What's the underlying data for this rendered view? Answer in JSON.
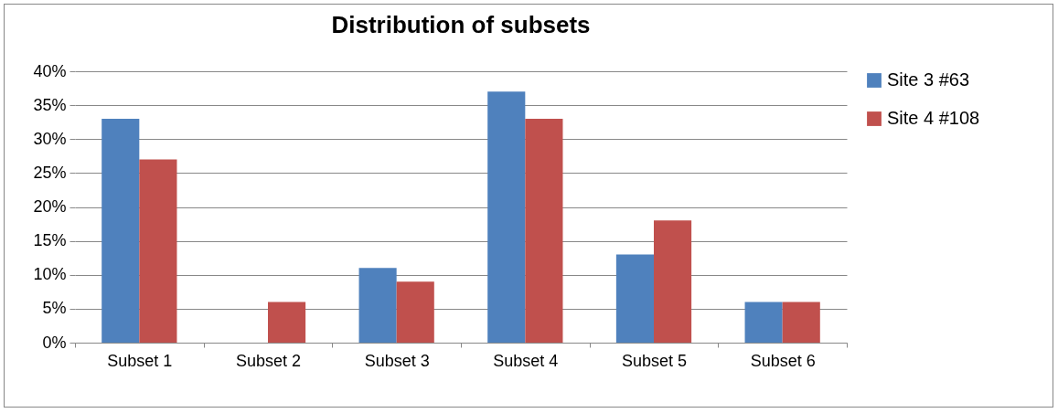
{
  "chart_data": {
    "type": "bar",
    "title": "Distribution of subsets",
    "categories": [
      "Subset 1",
      "Subset 2",
      "Subset 3",
      "Subset 4",
      "Subset 5",
      "Subset 6"
    ],
    "series": [
      {
        "name": "Site 3 #63",
        "color": "#4f81bd",
        "values": [
          33,
          0,
          11,
          37,
          13,
          6
        ]
      },
      {
        "name": "Site 4 #108",
        "color": "#c0504d",
        "values": [
          27,
          6,
          9,
          33,
          18,
          6
        ]
      }
    ],
    "ylim": [
      0,
      40
    ],
    "yticks": [
      {
        "value": 0,
        "label": "0%"
      },
      {
        "value": 5,
        "label": "5%"
      },
      {
        "value": 10,
        "label": "10%"
      },
      {
        "value": 15,
        "label": "15%"
      },
      {
        "value": 20,
        "label": "20%"
      },
      {
        "value": 25,
        "label": "25%"
      },
      {
        "value": 30,
        "label": "30%"
      },
      {
        "value": 35,
        "label": "35%"
      },
      {
        "value": 40,
        "label": "40%"
      }
    ],
    "grid": "y",
    "legend": "right"
  }
}
